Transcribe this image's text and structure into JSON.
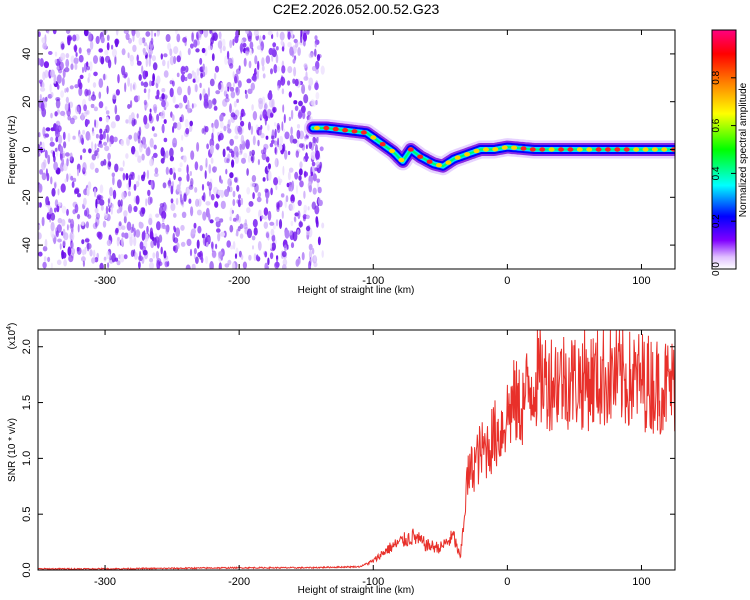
{
  "title": "C2E2.2026.052.00.52.G23",
  "chart_data": [
    {
      "type": "heatmap",
      "name": "spectrogram",
      "xlabel": "Height of straight line (km)",
      "ylabel": "Frequency (Hz)",
      "xlim": [
        -350,
        125
      ],
      "ylim": [
        -50,
        50
      ],
      "xticks": [
        -300,
        -200,
        -100,
        0,
        100
      ],
      "yticks": [
        -40,
        -20,
        0,
        20,
        40
      ],
      "noise_region_x": [
        -350,
        -145
      ],
      "signal_track": {
        "x": [
          -145,
          -135,
          -120,
          -105,
          -95,
          -85,
          -78,
          -72,
          -65,
          -55,
          -48,
          -40,
          -30,
          -20,
          -10,
          0,
          20,
          40,
          60,
          80,
          100,
          125
        ],
        "y": [
          9,
          9,
          8,
          7,
          3,
          -1,
          -5,
          0,
          -3,
          -6,
          -7,
          -4,
          -2,
          0,
          0,
          1,
          0,
          0,
          0,
          0,
          0,
          0
        ]
      }
    },
    {
      "type": "colorbar",
      "name": "colorbar",
      "label": "Normalized spectral amplitude",
      "ticks": [
        "0.0",
        "0.2",
        "0.4",
        "0.6",
        "0.8"
      ],
      "range": [
        0,
        1
      ],
      "colors": [
        "#ffffff",
        "#c080ff",
        "#8000ff",
        "#0000ff",
        "#00ffff",
        "#00ff00",
        "#ffff00",
        "#ff8000",
        "#ff0000",
        "#ff0080"
      ]
    },
    {
      "type": "line",
      "name": "snr",
      "xlabel": "Height of straight line (km)",
      "ylabel": "SNR (10 * v/v)",
      "multiplier": "(x10",
      "multiplier_exp": "4",
      "multiplier_close": ")",
      "xlim": [
        -350,
        125
      ],
      "ylim": [
        0,
        2.15
      ],
      "xticks": [
        -300,
        -200,
        -100,
        0,
        100
      ],
      "yticks": [
        "0.0",
        "0.5",
        "1.0",
        "1.5",
        "2.0"
      ],
      "ytick_values": [
        0,
        0.5,
        1.0,
        1.5,
        2.0
      ],
      "color": "#e8302a",
      "series": {
        "x": [
          -350,
          -300,
          -250,
          -200,
          -150,
          -110,
          -100,
          -90,
          -80,
          -70,
          -60,
          -50,
          -40,
          -35,
          -30,
          -25,
          -20,
          -15,
          -10,
          -5,
          0,
          5,
          10,
          15,
          20,
          25,
          30,
          40,
          50,
          60,
          70,
          80,
          90,
          100,
          110,
          125
        ],
        "y": [
          0.01,
          0.01,
          0.015,
          0.02,
          0.02,
          0.03,
          0.08,
          0.18,
          0.25,
          0.3,
          0.22,
          0.2,
          0.3,
          0.1,
          0.8,
          0.95,
          1.05,
          1.1,
          1.2,
          1.25,
          1.4,
          1.5,
          1.45,
          1.6,
          1.7,
          1.72,
          1.7,
          1.72,
          1.7,
          1.7,
          1.72,
          1.73,
          1.7,
          1.7,
          1.66,
          1.65
        ]
      }
    }
  ]
}
